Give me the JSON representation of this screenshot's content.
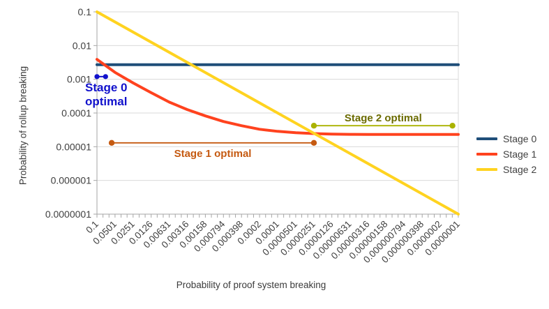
{
  "chart_data": {
    "type": "line",
    "title": "",
    "xlabel": "Probability of proof system breaking",
    "ylabel": "Probability of rollup breaking",
    "x_scale": "log-descending",
    "y_scale": "log",
    "x_range": [
      0.1,
      1e-07
    ],
    "y_range": [
      1e-07,
      0.1
    ],
    "grid": "horizontal",
    "legend_position": "right",
    "x_tick_labels": [
      "0.1",
      "0.0501",
      "0.0251",
      "0.0126",
      "0.00631",
      "0.00316",
      "0.00158",
      "0.000794",
      "0.000398",
      "0.0002",
      "0.0001",
      "0.0000501",
      "0.0000251",
      "0.0000126",
      "0.00000631",
      "0.00000316",
      "0.00000158",
      "0.000000794",
      "0.000000398",
      "0.0000002",
      "0.0000001"
    ],
    "y_tick_labels": [
      "0.1",
      "0.01",
      "0.001",
      "0.0001",
      "0.00001",
      "0.000001",
      "0.0000001"
    ],
    "series": [
      {
        "name": "Stage 0",
        "color": "#1F4E79",
        "points": [
          [
            0.1,
            0.0027
          ],
          [
            1e-07,
            0.0027
          ]
        ]
      },
      {
        "name": "Stage 1",
        "color": "#FF421E",
        "points": [
          [
            0.1,
            0.0039
          ],
          [
            0.0501,
            0.0016
          ],
          [
            0.0251,
            0.00078
          ],
          [
            0.0126,
            0.0004
          ],
          [
            0.00631,
            0.00021
          ],
          [
            0.00316,
            0.000126
          ],
          [
            0.00158,
            8.2e-05
          ],
          [
            0.000794,
            5.6e-05
          ],
          [
            0.000398,
            4.2e-05
          ],
          [
            0.0002,
            3.3e-05
          ],
          [
            0.0001,
            2.85e-05
          ],
          [
            5.01e-05,
            2.6e-05
          ],
          [
            2.51e-05,
            2.45e-05
          ],
          [
            1.26e-05,
            2.37e-05
          ],
          [
            6.31e-06,
            2.33e-05
          ],
          [
            3.16e-06,
            2.31e-05
          ],
          [
            1.58e-06,
            2.3e-05
          ],
          [
            7.94e-07,
            2.3e-05
          ],
          [
            3.98e-07,
            2.3e-05
          ],
          [
            2e-07,
            2.3e-05
          ],
          [
            1e-07,
            2.3e-05
          ]
        ]
      },
      {
        "name": "Stage 2",
        "color": "#FFD320",
        "points": [
          [
            0.1,
            0.1
          ],
          [
            1e-07,
            1e-07
          ]
        ]
      }
    ],
    "annotations": [
      {
        "id": "stage0-optimal",
        "label": "Stage 0 optimal",
        "label_lines": [
          "Stage 0",
          "optimal"
        ],
        "line_color": "#1111CC",
        "text_color": "#1111CC",
        "y": 0.0012,
        "x_start": 0.1,
        "x_end": 0.072,
        "label_placement": "below-start"
      },
      {
        "id": "stage1-optimal",
        "label": "Stage 1 optimal",
        "label_lines": [
          "Stage 1 optimal"
        ],
        "line_color": "#C55A11",
        "text_color": "#C55A11",
        "y": 1.3e-05,
        "x_start": 0.057,
        "x_end": 2.5e-05,
        "label_placement": "below-center"
      },
      {
        "id": "stage2-optimal",
        "label": "Stage 2 optimal",
        "label_lines": [
          "Stage 2 optimal"
        ],
        "line_color": "#AAB200",
        "text_color": "#6B6B00",
        "y": 4.2e-05,
        "x_start": 2.5e-05,
        "x_end": 1.25e-07,
        "label_placement": "above-center"
      }
    ]
  }
}
